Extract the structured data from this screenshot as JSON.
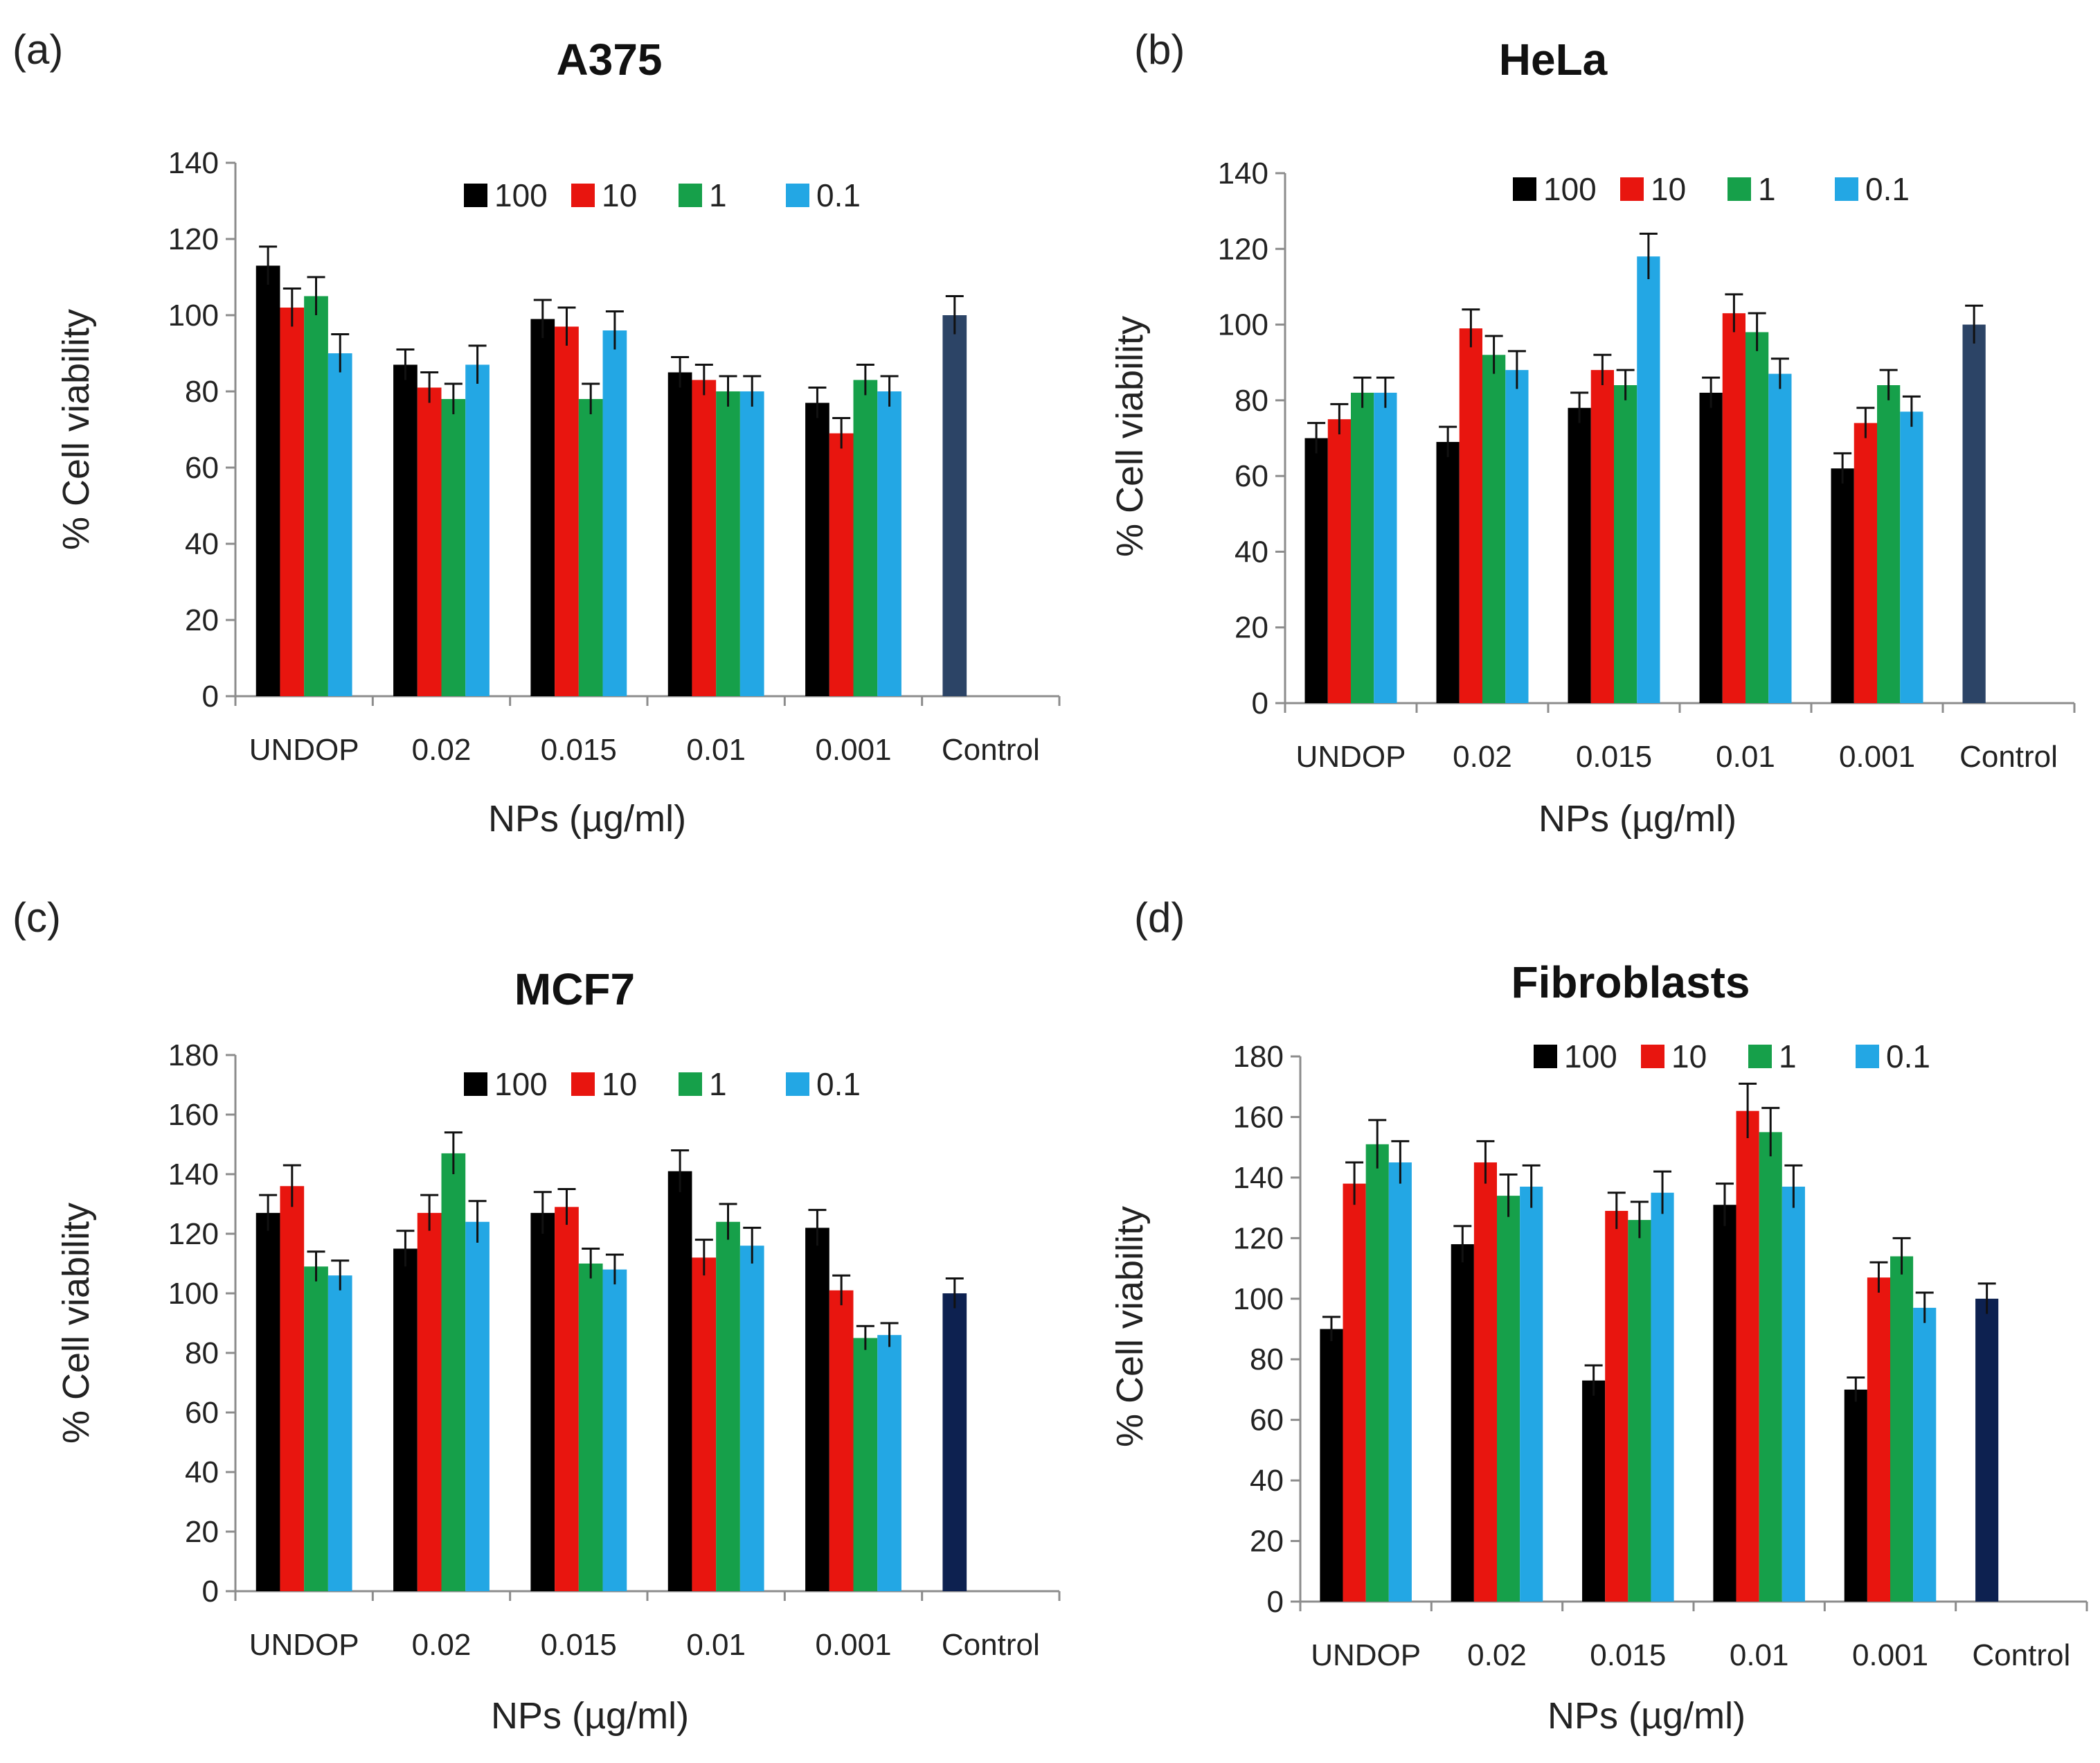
{
  "colors": {
    "100": "#000000",
    "10": "#e8150f",
    "1": "#16a04a",
    "0.1": "#23a7e4",
    "control_ab": "#2c4466",
    "control_cd": "#0d2150",
    "axis": "#8c8c8c",
    "error": "#111111"
  },
  "chart_data": [
    {
      "panel": "(a)",
      "type": "bar",
      "title": "A375",
      "xlabel": "NPs (µg/ml)",
      "ylabel": "% Cell viability",
      "ylim": [
        0,
        140
      ],
      "yticks": [
        0,
        20,
        40,
        60,
        80,
        100,
        120,
        140
      ],
      "categories": [
        "UNDOP",
        "0.02",
        "0.015",
        "0.01",
        "0.001",
        "Control"
      ],
      "legend_position": "top-center",
      "series": [
        {
          "name": "100",
          "values": [
            113,
            87,
            99,
            85,
            77,
            null
          ],
          "errors": [
            5,
            4,
            5,
            4,
            4,
            null
          ]
        },
        {
          "name": "10",
          "values": [
            102,
            81,
            97,
            83,
            69,
            null
          ],
          "errors": [
            5,
            4,
            5,
            4,
            4,
            null
          ]
        },
        {
          "name": "1",
          "values": [
            105,
            78,
            78,
            80,
            83,
            null
          ],
          "errors": [
            5,
            4,
            4,
            4,
            4,
            null
          ]
        },
        {
          "name": "0.1",
          "values": [
            90,
            87,
            96,
            80,
            80,
            null
          ],
          "errors": [
            5,
            5,
            5,
            4,
            4,
            null
          ]
        }
      ],
      "control": {
        "value": 100,
        "error": 5
      }
    },
    {
      "panel": "(b)",
      "type": "bar",
      "title": "HeLa",
      "xlabel": "NPs (µg/ml)",
      "ylabel": "% Cell viability",
      "ylim": [
        0,
        140
      ],
      "yticks": [
        0,
        20,
        40,
        60,
        80,
        100,
        120,
        140
      ],
      "categories": [
        "UNDOP",
        "0.02",
        "0.015",
        "0.01",
        "0.001",
        "Control"
      ],
      "legend_position": "top-center",
      "series": [
        {
          "name": "100",
          "values": [
            70,
            69,
            78,
            82,
            62,
            null
          ],
          "errors": [
            4,
            4,
            4,
            4,
            4,
            null
          ]
        },
        {
          "name": "10",
          "values": [
            75,
            99,
            88,
            103,
            74,
            null
          ],
          "errors": [
            4,
            5,
            4,
            5,
            4,
            null
          ]
        },
        {
          "name": "1",
          "values": [
            82,
            92,
            84,
            98,
            84,
            null
          ],
          "errors": [
            4,
            5,
            4,
            5,
            4,
            null
          ]
        },
        {
          "name": "0.1",
          "values": [
            82,
            88,
            118,
            87,
            77,
            null
          ],
          "errors": [
            4,
            5,
            6,
            4,
            4,
            null
          ]
        }
      ],
      "control": {
        "value": 100,
        "error": 5
      }
    },
    {
      "panel": "(c)",
      "type": "bar",
      "title": "MCF7",
      "xlabel": "NPs (µg/ml)",
      "ylabel": "% Cell viability",
      "ylim": [
        0,
        180
      ],
      "yticks": [
        0,
        20,
        40,
        60,
        80,
        100,
        120,
        140,
        160,
        180
      ],
      "categories": [
        "UNDOP",
        "0.02",
        "0.015",
        "0.01",
        "0.001",
        "Control"
      ],
      "legend_position": "top-center",
      "series": [
        {
          "name": "100",
          "values": [
            127,
            115,
            127,
            141,
            122,
            null
          ],
          "errors": [
            6,
            6,
            7,
            7,
            6,
            null
          ]
        },
        {
          "name": "10",
          "values": [
            136,
            127,
            129,
            112,
            101,
            null
          ],
          "errors": [
            7,
            6,
            6,
            6,
            5,
            null
          ]
        },
        {
          "name": "1",
          "values": [
            109,
            147,
            110,
            124,
            85,
            null
          ],
          "errors": [
            5,
            7,
            5,
            6,
            4,
            null
          ]
        },
        {
          "name": "0.1",
          "values": [
            106,
            124,
            108,
            116,
            86,
            null
          ],
          "errors": [
            5,
            7,
            5,
            6,
            4,
            null
          ]
        }
      ],
      "control": {
        "value": 100,
        "error": 5
      }
    },
    {
      "panel": "(d)",
      "type": "bar",
      "title": "Fibroblasts",
      "xlabel": "NPs (µg/ml)",
      "ylabel": "% Cell viability",
      "ylim": [
        0,
        180
      ],
      "yticks": [
        0,
        20,
        40,
        60,
        80,
        100,
        120,
        140,
        160,
        180
      ],
      "categories": [
        "UNDOP",
        "0.02",
        "0.015",
        "0.01",
        "0.001",
        "Control"
      ],
      "legend_position": "top-center",
      "series": [
        {
          "name": "100",
          "values": [
            90,
            118,
            73,
            131,
            70,
            null
          ],
          "errors": [
            4,
            6,
            5,
            7,
            4,
            null
          ]
        },
        {
          "name": "10",
          "values": [
            138,
            145,
            129,
            162,
            107,
            null
          ],
          "errors": [
            7,
            7,
            6,
            9,
            5,
            null
          ]
        },
        {
          "name": "1",
          "values": [
            151,
            134,
            126,
            155,
            114,
            null
          ],
          "errors": [
            8,
            7,
            6,
            8,
            6,
            null
          ]
        },
        {
          "name": "0.1",
          "values": [
            145,
            137,
            135,
            137,
            97,
            null
          ],
          "errors": [
            7,
            7,
            7,
            7,
            5,
            null
          ]
        }
      ],
      "control": {
        "value": 100,
        "error": 5
      }
    }
  ]
}
